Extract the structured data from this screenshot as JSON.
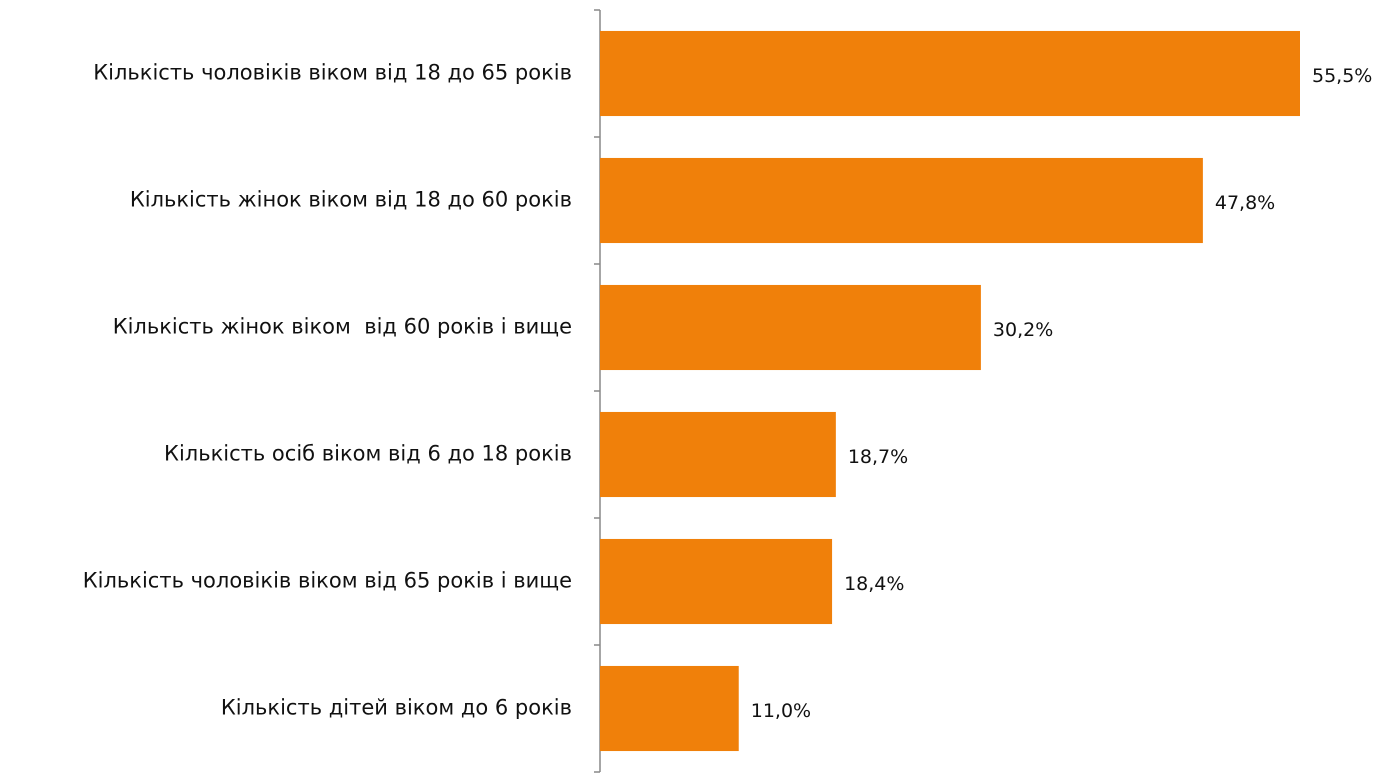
{
  "chart_data": {
    "type": "bar",
    "orientation": "horizontal",
    "categories": [
      "Кількість чоловіків віком від 18 до 65 років",
      "Кількість жінок віком від 18 до 60 років",
      "Кількість жінок віком  від 60 років і вище",
      "Кількість осіб віком від 6 до 18 років",
      "Кількість чоловіків віком від 65 років і вище",
      "Кількість дітей віком до 6 років"
    ],
    "values": [
      55.5,
      47.8,
      30.2,
      18.7,
      18.4,
      11.0
    ],
    "value_labels": [
      "55,5%",
      "47,8%",
      "30,2%",
      "18,7%",
      "18,4%",
      "11,0%"
    ],
    "color": "#f0800a"
  }
}
